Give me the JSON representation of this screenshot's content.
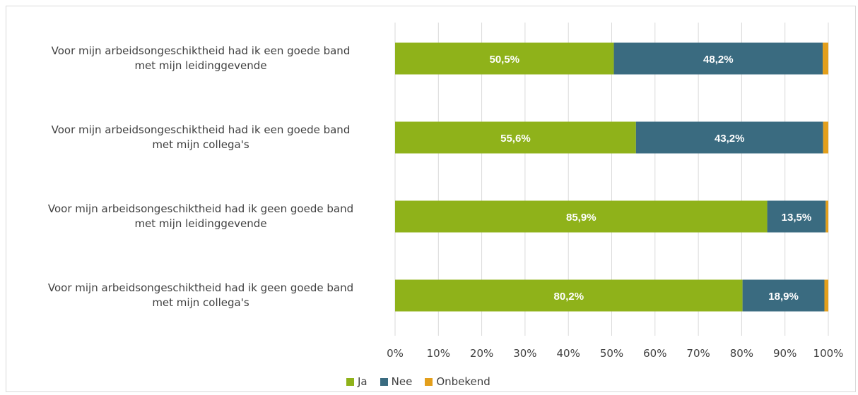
{
  "chart_data": {
    "type": "bar",
    "orientation": "horizontal",
    "stacked": true,
    "title": "",
    "xlabel": "",
    "ylabel": "",
    "xlim": [
      0,
      100
    ],
    "x_ticks": [
      "0%",
      "10%",
      "20%",
      "30%",
      "40%",
      "50%",
      "60%",
      "70%",
      "80%",
      "90%",
      "100%"
    ],
    "grid": "vertical",
    "legend_placement": "bottom",
    "categories": [
      "Voor mijn arbeidsongeschiktheid had ik een goede band met mijn leidinggevende",
      "Voor mijn arbeidsongeschiktheid had ik een goede band met mijn collega's",
      "Voor mijn arbeidsongeschiktheid had ik geen goede band met mijn leidinggevende",
      "Voor mijn arbeidsongeschiktheid had ik geen goede band met mijn collega's"
    ],
    "category_lines": [
      [
        "Voor mijn arbeidsongeschiktheid had ik een goede band",
        "met mijn leidinggevende"
      ],
      [
        "Voor mijn arbeidsongeschiktheid had ik een goede band",
        "met mijn collega's"
      ],
      [
        "Voor mijn arbeidsongeschiktheid had ik geen goede band",
        "met mijn leidinggevende"
      ],
      [
        "Voor mijn arbeidsongeschiktheid had ik geen goede band",
        "met mijn collega's"
      ]
    ],
    "series": [
      {
        "name": "Ja",
        "color": "#8fb21a",
        "values": [
          50.5,
          55.6,
          85.9,
          80.2
        ],
        "labels": [
          "50,5%",
          "55,6%",
          "85,9%",
          "80,2%"
        ]
      },
      {
        "name": "Nee",
        "color": "#3a6b80",
        "values": [
          48.2,
          43.2,
          13.5,
          18.9
        ],
        "labels": [
          "48,2%",
          "43,2%",
          "13,5%",
          "18,9%"
        ]
      },
      {
        "name": "Onbekend",
        "color": "#e39f1c",
        "values": [
          1.3,
          1.2,
          0.6,
          0.9
        ],
        "labels": [
          "",
          "",
          "",
          ""
        ]
      }
    ]
  }
}
